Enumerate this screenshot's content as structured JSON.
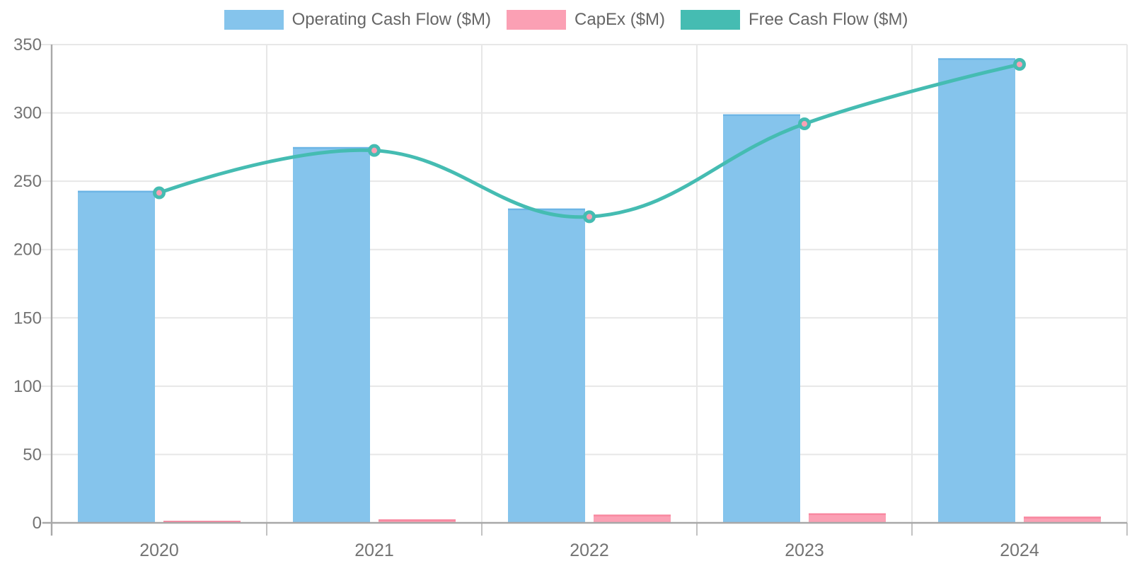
{
  "legend": {
    "position": "top",
    "items": [
      {
        "label": "Operating Cash Flow ($M)",
        "color": "#85C4EC"
      },
      {
        "label": "CapEx ($M)",
        "color": "#FBA0B4"
      },
      {
        "label": "Free Cash Flow ($M)",
        "color": "#45BCB2"
      }
    ]
  },
  "chart_data": {
    "type": "bar",
    "subtype": "combo-bar-line",
    "title": "",
    "xlabel": "",
    "ylabel": "",
    "categories": [
      "2020",
      "2021",
      "2022",
      "2023",
      "2024"
    ],
    "series": [
      {
        "name": "Operating Cash Flow ($M)",
        "type": "bar",
        "color": "#85C4EC",
        "border_color": "#6CB5E5",
        "values": [
          243,
          275,
          230,
          299,
          340
        ]
      },
      {
        "name": "CapEx ($M)",
        "type": "bar",
        "color": "#FBA0B4",
        "border_color": "#F8879F",
        "values": [
          1.5,
          2.5,
          6,
          7,
          4.5
        ]
      },
      {
        "name": "Free Cash Flow ($M)",
        "type": "line",
        "color": "#45BCB2",
        "point_fill": "#FBA0B4",
        "line_width": 5,
        "tension": 0.4,
        "values": [
          241.5,
          272.5,
          224,
          292,
          335.5
        ]
      }
    ],
    "ylim": [
      0,
      350
    ],
    "yticks": [
      0,
      50,
      100,
      150,
      200,
      250,
      300,
      350
    ],
    "grid": true,
    "legend_position": "top",
    "colors": {
      "gridline": "#E7E7E7",
      "axis_line": "#A8A8A8",
      "x_tick_mark": "#C2C2C2",
      "tick_label": "#737373"
    }
  }
}
